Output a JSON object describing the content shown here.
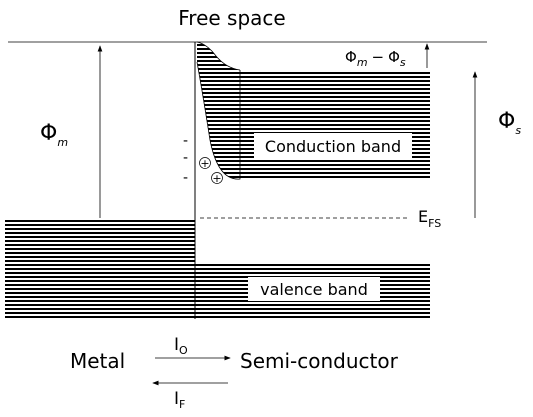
{
  "title": "Free space",
  "phi_m": {
    "base": "Φ",
    "sub": "m"
  },
  "phi_diff": {
    "left": {
      "base": "Φ",
      "sub": "m"
    },
    "op": "−",
    "right": {
      "base": "Φ",
      "sub": "s"
    }
  },
  "phi_s": {
    "base": "Φ",
    "sub": "s"
  },
  "conduction_band": "Conduction band",
  "valence_band": "valence band",
  "fermi": {
    "base": "E",
    "sub": "FS"
  },
  "charges": {
    "minus": [
      "-",
      "-",
      "-"
    ],
    "plus": [
      "+",
      "+"
    ]
  },
  "metal": "Metal",
  "semiconductor": "Semi-conductor",
  "current_o": {
    "base": "I",
    "sub": "O"
  },
  "current_f": {
    "base": "I",
    "sub": "F"
  }
}
